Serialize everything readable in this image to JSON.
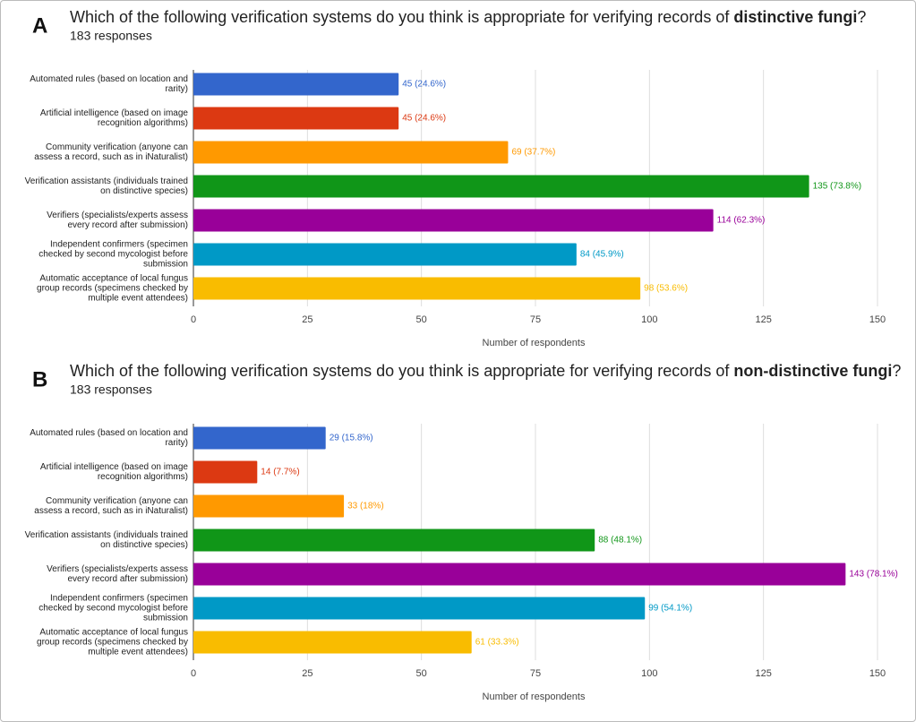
{
  "chart_data": [
    {
      "type": "bar",
      "orientation": "horizontal",
      "panel": "A",
      "title": [
        "Which of the following verification systems do you think is appropriate for verifying records of ",
        "distinctive fungi",
        "?"
      ],
      "subtitle": "183 responses",
      "categories": [
        [
          "Automated rules (based on location and",
          "rarity)"
        ],
        [
          "Artificial intelligence (based on image",
          "recognition algorithms)"
        ],
        [
          "Community verification (anyone can",
          "assess a record, such as in iNaturalist)"
        ],
        [
          "Verification assistants (individuals trained",
          "on distinctive species)"
        ],
        [
          "Verifiers (specialists/experts assess",
          "every record after submission)"
        ],
        [
          "Independent confirmers (specimen",
          "checked by second mycologist before",
          "submission"
        ],
        [
          "Automatic acceptance of local fungus",
          "group records (specimens checked by",
          "multiple event attendees)"
        ]
      ],
      "values": [
        45,
        45,
        69,
        135,
        114,
        84,
        98
      ],
      "value_labels": [
        "45 (24.6%)",
        "45 (24.6%)",
        "69 (37.7%)",
        "135 (73.8%)",
        "114 (62.3%)",
        "84 (45.9%)",
        "98 (53.6%)"
      ],
      "colors": [
        "#3366cc",
        "#dc3912",
        "#ff9900",
        "#109618",
        "#990099",
        "#0099c6",
        "#f9bc00"
      ],
      "xlim": [
        0,
        150
      ],
      "xticks": [
        0,
        25,
        50,
        75,
        100,
        125,
        150
      ],
      "xlabel": "Number of respondents",
      "grid": true
    },
    {
      "type": "bar",
      "orientation": "horizontal",
      "panel": "B",
      "title": [
        "Which of the following verification systems do you think is appropriate for verifying records of ",
        "non-distinctive fungi",
        "?"
      ],
      "subtitle": "183 responses",
      "categories": [
        [
          "Automated rules (based on location and",
          "rarity)"
        ],
        [
          "Artificial intelligence (based on image",
          "recognition algorithms)"
        ],
        [
          "Community verification (anyone can",
          "assess a record, such as in iNaturalist)"
        ],
        [
          "Verification assistants (individuals trained",
          "on distinctive species)"
        ],
        [
          "Verifiers (specialists/experts assess",
          "every record after submission)"
        ],
        [
          "Independent confirmers (specimen",
          "checked by second mycologist before",
          "submission"
        ],
        [
          "Automatic acceptance of local fungus",
          "group records (specimens checked by",
          "multiple event attendees)"
        ]
      ],
      "values": [
        29,
        14,
        33,
        88,
        143,
        99,
        61
      ],
      "value_labels": [
        "29 (15.8%)",
        "14 (7.7%)",
        "33 (18%)",
        "88 (48.1%)",
        "143 (78.1%)",
        "99 (54.1%)",
        "61 (33.3%)"
      ],
      "colors": [
        "#3366cc",
        "#dc3912",
        "#ff9900",
        "#109618",
        "#990099",
        "#0099c6",
        "#f9bc00"
      ],
      "xlim": [
        0,
        150
      ],
      "xticks": [
        0,
        25,
        50,
        75,
        100,
        125,
        150
      ],
      "xlabel": "Number of respondents",
      "grid": true
    }
  ]
}
